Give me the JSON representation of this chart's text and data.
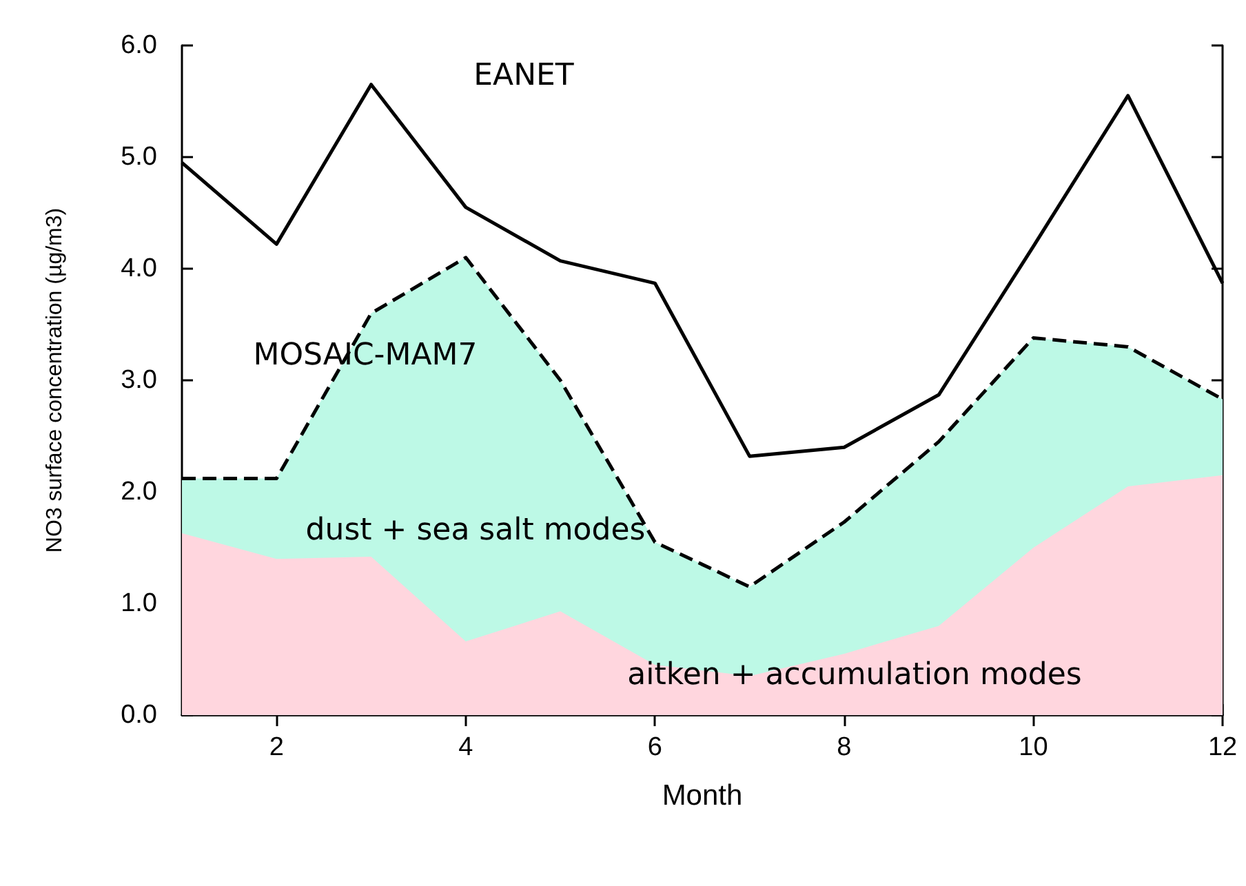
{
  "chart_data": {
    "type": "line",
    "xlabel": "Month",
    "ylabel": "NO3 surface concentration (µg/m3)",
    "x": [
      1,
      2,
      3,
      4,
      5,
      6,
      7,
      8,
      9,
      10,
      11,
      12
    ],
    "series": [
      {
        "type": "area",
        "color": "#bdf9e6",
        "line_style": "dashed",
        "values": [
          2.12,
          2.12,
          3.6,
          4.1,
          3.0,
          1.55,
          1.15,
          1.73,
          2.45,
          3.38,
          3.3,
          2.83
        ]
      },
      {
        "type": "area",
        "color": "#ffd6de",
        "values": [
          1.63,
          1.4,
          1.42,
          0.66,
          0.93,
          0.45,
          0.35,
          0.55,
          0.8,
          1.5,
          2.05,
          2.15
        ]
      },
      {
        "type": "line",
        "color": "#000000",
        "line_style": "solid",
        "values": [
          4.95,
          4.22,
          5.65,
          4.55,
          4.07,
          3.87,
          2.32,
          2.4,
          2.87,
          4.2,
          5.55,
          3.87
        ]
      }
    ],
    "xlim": [
      1,
      12
    ],
    "xticks": [
      2,
      4,
      6,
      8,
      10,
      12
    ],
    "ylim": [
      0,
      6
    ],
    "yticks": [
      {
        "value": 0,
        "label": "0.0"
      },
      {
        "value": 1,
        "label": "1.0"
      },
      {
        "value": 2,
        "label": "2.0"
      },
      {
        "value": 3,
        "label": "3.0"
      },
      {
        "value": 4,
        "label": "4.0"
      },
      {
        "value": 5,
        "label": "5.0"
      },
      {
        "value": 6,
        "label": "6.0"
      }
    ],
    "grid": false,
    "marker": "none",
    "annotations": [
      "EANET",
      "MOSAIC-MAM7",
      "dust + sea salt modes",
      "aitken + accumulation modes"
    ]
  }
}
